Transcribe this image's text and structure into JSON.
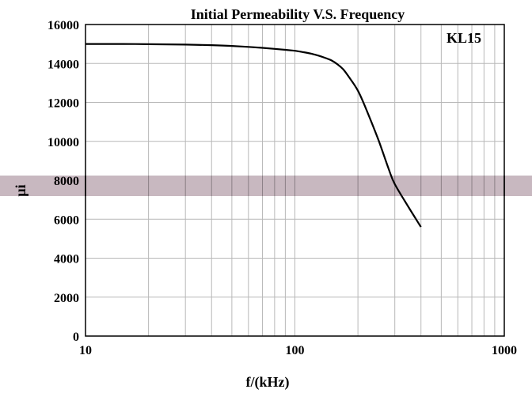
{
  "chart_data": {
    "type": "line",
    "title": "Initial Permeability V.S. Frequency",
    "xlabel": "f/(kHz)",
    "ylabel": "μi",
    "x_scale": "log",
    "xlim": [
      10,
      1000
    ],
    "ylim": [
      0,
      16000
    ],
    "x_ticks": [
      "10",
      "100",
      "1000"
    ],
    "y_ticks": [
      "0",
      "2000",
      "4000",
      "6000",
      "8000",
      "10000",
      "12000",
      "14000",
      "16000"
    ],
    "grid": true,
    "annotation": "KL15",
    "series": [
      {
        "x": [
          10,
          15,
          20,
          30,
          40,
          50,
          60,
          70,
          80,
          90,
          100,
          110,
          120,
          130,
          140,
          150,
          160,
          170,
          180,
          200,
          220,
          250,
          280,
          300,
          350,
          400
        ],
        "y": [
          15000,
          15000,
          14990,
          14970,
          14940,
          14900,
          14850,
          14800,
          14750,
          14700,
          14650,
          14580,
          14500,
          14400,
          14280,
          14150,
          13950,
          13700,
          13350,
          12600,
          11600,
          10100,
          8600,
          7800,
          6600,
          5600
        ]
      }
    ],
    "colors": {
      "line": "#000000",
      "grid": "#b8b8b8",
      "band": "#c8b8c0"
    }
  }
}
